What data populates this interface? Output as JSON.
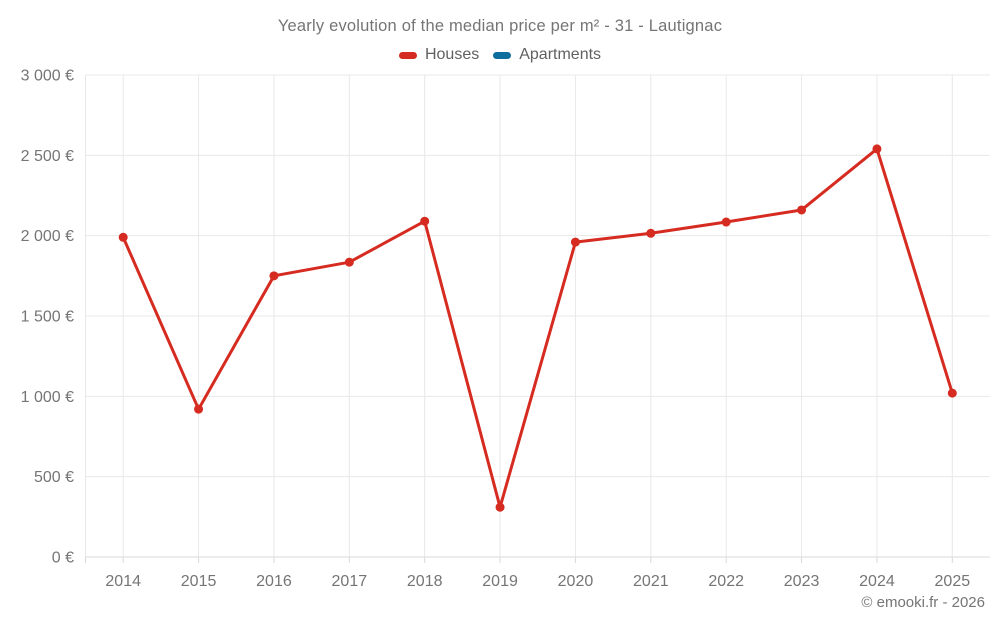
{
  "chart_data": {
    "type": "line",
    "title": "Yearly evolution of the median price per m² - 31 - Lautignac",
    "categories": [
      "2014",
      "2015",
      "2016",
      "2017",
      "2018",
      "2019",
      "2020",
      "2021",
      "2022",
      "2023",
      "2024",
      "2025"
    ],
    "series": [
      {
        "name": "Houses",
        "color": "#d62b20",
        "values": [
          1990,
          920,
          1750,
          1835,
          2090,
          310,
          1960,
          2015,
          2085,
          2160,
          2540,
          1020
        ]
      },
      {
        "name": "Apartments",
        "color": "#0d6e9e",
        "values": []
      }
    ],
    "xlabel": "",
    "ylabel": "",
    "ylim": [
      0,
      3000
    ],
    "y_ticks": [
      0,
      500,
      1000,
      1500,
      2000,
      2500,
      3000
    ],
    "y_tick_labels": [
      "0 €",
      "500 €",
      "1 000 €",
      "1 500 €",
      "2 000 €",
      "2 500 €",
      "3 000 €"
    ],
    "grid": true,
    "legend_position": "top",
    "text_color": "#757575",
    "grid_color": "#e8e8e8",
    "axis_color": "#d9d9d9",
    "line_width": 3,
    "point_radius": 4.5
  },
  "footer": {
    "credit": "© emooki.fr - 2026"
  }
}
